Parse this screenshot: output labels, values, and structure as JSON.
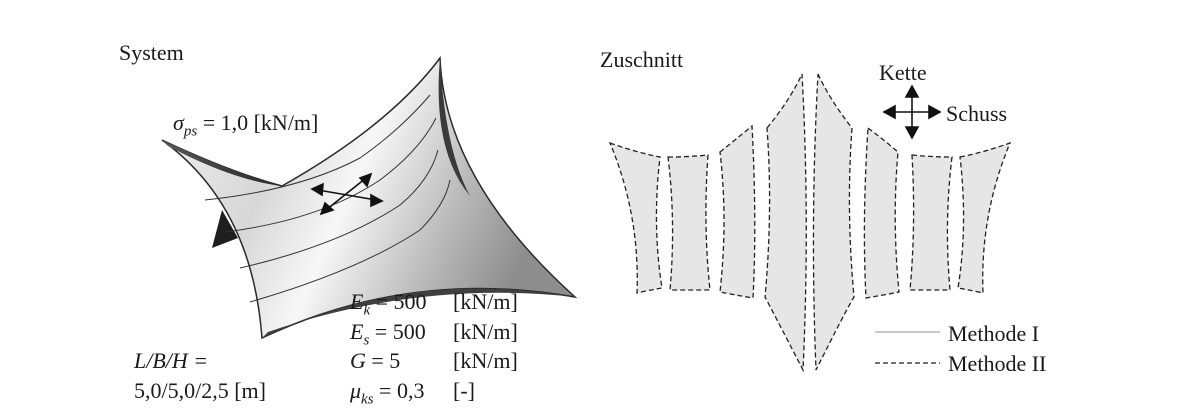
{
  "left_panel": {
    "title": "System",
    "prestress": {
      "symbol": "σ",
      "subscript": "ps",
      "value": "= 1,0 [kN/m]"
    },
    "properties": [
      {
        "symbol": "E",
        "subscript": "k",
        "value": "= 500",
        "unit": "[kN/m]"
      },
      {
        "symbol": "E",
        "subscript": "s",
        "value": "= 500",
        "unit": "[kN/m]"
      },
      {
        "symbol": "G",
        "subscript": "",
        "value": "= 5",
        "unit": "[kN/m]"
      },
      {
        "symbol": "μ",
        "subscript": "ks",
        "value": "= 0,3",
        "unit": "[-]"
      }
    ],
    "dimensions": {
      "label": "L/B/H =",
      "value": "5,0/5,0/2,5 [m]"
    }
  },
  "right_panel": {
    "title": "Zuschnitt",
    "warp_label": "Kette",
    "weft_label": "Schuss",
    "legend": [
      {
        "label": "Methode I",
        "style": "solid"
      },
      {
        "label": "Methode II",
        "style": "dashed"
      }
    ],
    "panel_fill": "#e6e6e6"
  }
}
